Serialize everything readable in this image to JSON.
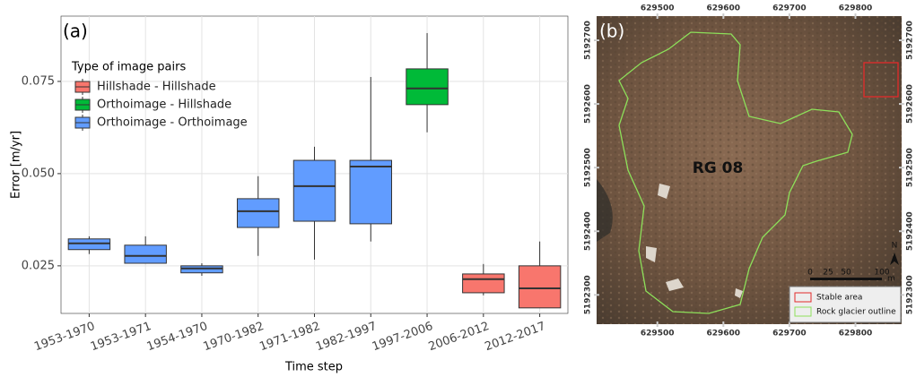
{
  "chart_data": {
    "type": "boxplot",
    "panel_label": "(a)",
    "x_label": "Time step",
    "y_label": "Error [m/yr]",
    "categories": [
      "1953-1970",
      "1953-1971",
      "1954-1970",
      "1970-1982",
      "1971-1982",
      "1982-1997",
      "1997-2006",
      "2006-2012",
      "2012-2017"
    ],
    "boxes": [
      {
        "min": 0.0282,
        "q1": 0.0294,
        "median": 0.0311,
        "q3": 0.0323,
        "max": 0.033,
        "color": "#619cff"
      },
      {
        "min": 0.0256,
        "q1": 0.0257,
        "median": 0.0277,
        "q3": 0.0306,
        "max": 0.033,
        "color": "#619cff"
      },
      {
        "min": 0.0223,
        "q1": 0.0231,
        "median": 0.0243,
        "q3": 0.025,
        "max": 0.0257,
        "color": "#619cff"
      },
      {
        "min": 0.0277,
        "q1": 0.0354,
        "median": 0.0398,
        "q3": 0.0432,
        "max": 0.0493,
        "color": "#619cff"
      },
      {
        "min": 0.0267,
        "q1": 0.0371,
        "median": 0.0466,
        "q3": 0.0536,
        "max": 0.0573,
        "color": "#619cff"
      },
      {
        "min": 0.0316,
        "q1": 0.0364,
        "median": 0.0519,
        "q3": 0.0536,
        "max": 0.0762,
        "color": "#619cff"
      },
      {
        "min": 0.0612,
        "q1": 0.0687,
        "median": 0.0731,
        "q3": 0.0784,
        "max": 0.0881,
        "color": "#00ba38"
      },
      {
        "min": 0.017,
        "q1": 0.0177,
        "median": 0.0214,
        "q3": 0.0228,
        "max": 0.0255,
        "color": "#f8766d"
      },
      {
        "min": 0.0136,
        "q1": 0.0136,
        "median": 0.0189,
        "q3": 0.025,
        "max": 0.0316,
        "color": "#f8766d"
      }
    ],
    "legend_title": "Type of image pairs",
    "series": [
      {
        "name": "Hillshade - Hillshade",
        "color": "#f8766d"
      },
      {
        "name": "Orthoimage - Hillshade",
        "color": "#00ba38"
      },
      {
        "name": "Orthoimage - Orthoimage",
        "color": "#619cff"
      }
    ],
    "ylim": [
      0.0121,
      0.0927
    ],
    "yticks": [
      {
        "value": 0.025,
        "label": "0.025"
      },
      {
        "value": 0.05,
        "label": "0.050"
      },
      {
        "value": 0.075,
        "label": "0.075"
      }
    ],
    "grid": true,
    "legend_position": "top-left"
  },
  "map": {
    "panel_label": "(b)",
    "feature_label": "RG 08",
    "xticks": [
      629500,
      629600,
      629700,
      629800
    ],
    "yticks": [
      5192300,
      5192400,
      5192500,
      5192600,
      5192700
    ],
    "xlim": [
      629408,
      629870
    ],
    "ylim": [
      5192254,
      5192738
    ],
    "scale_labels": [
      "0",
      "25",
      "50",
      "100"
    ],
    "scale_unit": "m",
    "north": "N",
    "legend": [
      {
        "name": "Stable area",
        "color": "#e32b2b"
      },
      {
        "name": "Rock glacier outline",
        "color": "#8de05a"
      }
    ]
  }
}
